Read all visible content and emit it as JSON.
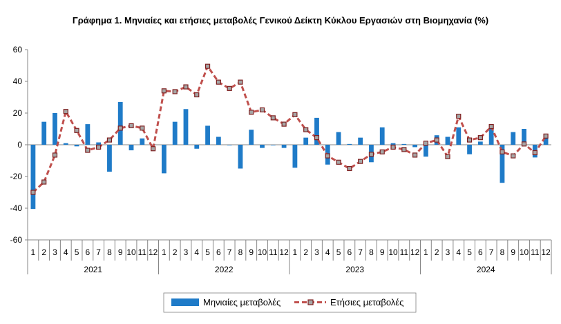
{
  "chart_data": {
    "type": "bar+line",
    "title": "Γράφημα 1. Μηνιαίες και ετήσιες μεταβολές  Γενικού Δείκτη Κύκλου Εργασιών στη Βιομηχανία  (%)",
    "month_labels": [
      "1",
      "2",
      "3",
      "4",
      "5",
      "6",
      "7",
      "8",
      "9",
      "10",
      "11",
      "12",
      "1",
      "2",
      "3",
      "4",
      "5",
      "6",
      "7",
      "8",
      "9",
      "10",
      "11",
      "12",
      "1",
      "2",
      "3",
      "4",
      "5",
      "6",
      "7",
      "8",
      "9",
      "10",
      "11",
      "12",
      "1",
      "2",
      "3",
      "4",
      "5",
      "6",
      "7",
      "8",
      "9",
      "10",
      "11",
      "12"
    ],
    "years": [
      "2021",
      "2022",
      "2023",
      "2024"
    ],
    "ylim": [
      -60,
      60
    ],
    "yticks": [
      60,
      40,
      20,
      0,
      -20,
      -40,
      -60
    ],
    "legend_position": "bottom",
    "series": [
      {
        "name": "Μηνιαίες μεταβολές",
        "kind": "bar",
        "color": "#1f7bc8",
        "values": [
          -40.5,
          14.5,
          20,
          1,
          -1,
          13,
          1.5,
          -17,
          27,
          -3.5,
          4,
          0,
          -18,
          14.5,
          22.5,
          -2.5,
          12,
          5,
          0,
          -15,
          9.5,
          -2,
          0,
          -2,
          -14.5,
          4.5,
          17,
          -12.5,
          8,
          0.5,
          4.5,
          -11,
          11,
          1,
          0.5,
          -1.5,
          -7.5,
          6,
          5,
          11,
          -6,
          2,
          11,
          -24,
          8,
          10,
          -8,
          5
        ]
      },
      {
        "name": "Ετήσιες μεταβολές",
        "kind": "line",
        "color": "#c0504d",
        "values": [
          -30,
          -23.5,
          -6.5,
          21,
          9,
          -3.5,
          -1.5,
          3,
          10.5,
          12,
          10.5,
          -2.5,
          34,
          33.5,
          36.5,
          31.5,
          49.5,
          39.5,
          35.5,
          39.5,
          20.5,
          22,
          17,
          13,
          19,
          9.5,
          4.5,
          -7,
          -11,
          -15,
          -10.5,
          -6,
          -4.5,
          -1.5,
          -3,
          -6.5,
          1,
          3,
          -7.5,
          18,
          3,
          4.5,
          11.5,
          -4.5,
          -7,
          0.5,
          -5,
          5.5
        ]
      }
    ]
  }
}
